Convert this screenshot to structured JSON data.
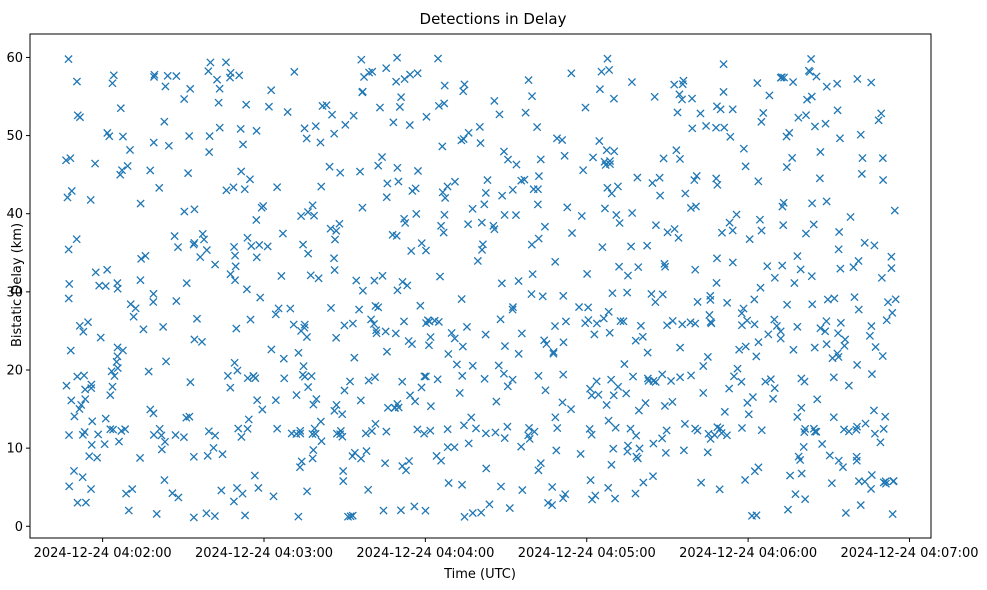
{
  "chart_data": {
    "type": "scatter",
    "title": "Detections in Delay",
    "xlabel": "Time (UTC)",
    "ylabel": "Bistatic Delay (km)",
    "marker": "x",
    "color": "#1f77b4",
    "x_start": "2024-12-24 04:01:46",
    "x_end": "2024-12-24 04:06:55",
    "xlim": [
      "2024-12-24 04:01:33",
      "2024-12-24 04:07:08"
    ],
    "ylim": [
      -1.5,
      63
    ],
    "point_count": 900,
    "y_distribution": "uniform random between 1 and 60 km with clusters near 12, 19 and 26 km",
    "xticks": [
      {
        "value": "2024-12-24 04:02:00",
        "label": "2024-12-24 04:02:00"
      },
      {
        "value": "2024-12-24 04:03:00",
        "label": "2024-12-24 04:03:00"
      },
      {
        "value": "2024-12-24 04:04:00",
        "label": "2024-12-24 04:04:00"
      },
      {
        "value": "2024-12-24 04:05:00",
        "label": "2024-12-24 04:05:00"
      },
      {
        "value": "2024-12-24 04:06:00",
        "label": "2024-12-24 04:06:00"
      },
      {
        "value": "2024-12-24 04:07:00",
        "label": "2024-12-24 04:07:00"
      }
    ],
    "yticks": [
      0,
      10,
      20,
      30,
      40,
      50,
      60
    ],
    "grid": false,
    "legend": "none"
  }
}
